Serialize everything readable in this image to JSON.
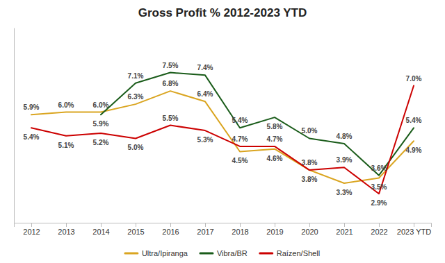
{
  "chart_data": {
    "type": "line",
    "title": "Gross Profit % 2012-2023 YTD",
    "categories": [
      "2012",
      "2013",
      "2014",
      "2015",
      "2016",
      "2017",
      "2018",
      "2019",
      "2020",
      "2021",
      "2022",
      "2023 YTD"
    ],
    "series": [
      {
        "name": "Ultra/Ipiranga",
        "color": "#DAA520",
        "values": [
          5.9,
          6.0,
          6.0,
          6.3,
          6.8,
          6.4,
          4.5,
          4.6,
          3.8,
          3.3,
          3.5,
          4.9
        ],
        "value_labels": [
          "5.9%",
          "6.0%",
          "6.0%",
          "6.3%",
          "6.8%",
          "6.4%",
          "4.5%",
          "4.6%",
          "3.8%",
          "3.3%",
          "3.5%",
          "4.9%"
        ]
      },
      {
        "name": "Vibra/BR",
        "color": "#1a5c1a",
        "values": [
          null,
          null,
          5.9,
          7.1,
          7.5,
          7.4,
          5.4,
          5.8,
          5.0,
          4.8,
          3.6,
          5.4
        ],
        "value_labels": [
          null,
          null,
          "5.9%",
          "7.1%",
          "7.5%",
          "7.4%",
          "5.4%",
          "5.8%",
          "5.0%",
          "4.8%",
          "3.6%",
          "5.4%"
        ]
      },
      {
        "name": "Raízen/Shell",
        "color": "#CC0000",
        "values": [
          5.4,
          5.1,
          5.2,
          5.0,
          5.5,
          5.3,
          4.7,
          4.7,
          3.8,
          3.9,
          2.9,
          7.0
        ],
        "value_labels": [
          "5.4%",
          "5.1%",
          "5.2%",
          "5.0%",
          "5.5%",
          "5.3%",
          "4.7%",
          "4.7%",
          "3.8%",
          "3.9%",
          "2.9%",
          "7.0%"
        ]
      }
    ],
    "ylim": [
      1.8,
      9.2
    ],
    "grid": false,
    "data_labels": true,
    "tick_labels": "x",
    "legend": "bottom"
  }
}
